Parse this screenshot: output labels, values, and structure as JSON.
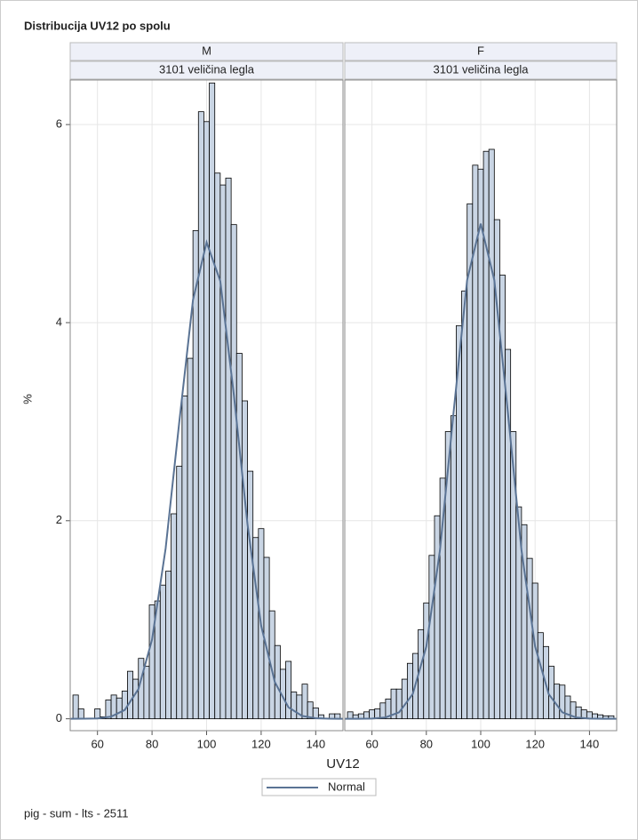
{
  "title": "Distribucija UV12 po spolu",
  "x_label": "UV12",
  "y_label": "%",
  "footnote": "pig - sum - lts - 2511",
  "bar_color": "#c9d5e4",
  "curve": {
    "name": "Normal",
    "color": "#5a7394"
  },
  "chart_data": [
    {
      "type": "histogram",
      "panel": "M",
      "panel_subtitle": "3101 veličina legla",
      "bins": [
        51,
        53,
        55,
        57,
        59,
        61,
        63,
        65,
        67,
        69,
        71,
        73,
        75,
        77,
        79,
        81,
        83,
        85,
        87,
        89,
        91,
        93,
        95,
        97,
        99,
        101,
        103,
        105,
        107,
        109,
        111,
        113,
        115,
        117,
        119,
        121,
        123,
        125,
        127,
        129,
        131,
        133,
        135,
        137,
        139,
        141,
        143,
        145,
        147,
        149
      ],
      "values": [
        0.24,
        0.1,
        0,
        0,
        0.1,
        0.02,
        0.19,
        0.24,
        0.21,
        0.28,
        0.48,
        0.4,
        0.61,
        0.53,
        1.15,
        1.19,
        1.35,
        1.49,
        2.07,
        2.55,
        3.26,
        3.64,
        4.93,
        6.13,
        6.03,
        6.42,
        5.51,
        5.39,
        5.46,
        4.99,
        3.69,
        3.21,
        2.5,
        1.83,
        1.92,
        1.63,
        1.09,
        0.74,
        0.5,
        0.58,
        0.27,
        0.24,
        0.35,
        0.17,
        0.11,
        0.04,
        0,
        0.05,
        0.05
      ],
      "curve_x": [
        50,
        55,
        60,
        65,
        70,
        75,
        80,
        85,
        90,
        95,
        100,
        105,
        110,
        115,
        120,
        125,
        130,
        135,
        140,
        145,
        150
      ],
      "curve_values": [
        0,
        0.001,
        0.004,
        0.022,
        0.089,
        0.3,
        0.8,
        1.72,
        3.0,
        4.23,
        4.81,
        4.42,
        3.27,
        1.96,
        0.94,
        0.37,
        0.116,
        0.029,
        0.006,
        0.001,
        0
      ],
      "xlim": [
        50,
        150
      ],
      "ylim": [
        -0.12,
        6.45
      ],
      "xticks": [
        60,
        80,
        100,
        120,
        140
      ],
      "yticks": [
        0,
        2,
        4,
        6
      ],
      "grid": true
    },
    {
      "type": "histogram",
      "panel": "F",
      "panel_subtitle": "3101 veličina legla",
      "bins": [
        51,
        53,
        55,
        57,
        59,
        61,
        63,
        65,
        67,
        69,
        71,
        73,
        75,
        77,
        79,
        81,
        83,
        85,
        87,
        89,
        91,
        93,
        95,
        97,
        99,
        101,
        103,
        105,
        107,
        109,
        111,
        113,
        115,
        117,
        119,
        121,
        123,
        125,
        127,
        129,
        131,
        133,
        135,
        137,
        139,
        141,
        143,
        145,
        147,
        149
      ],
      "values": [
        0.07,
        0.04,
        0.05,
        0.07,
        0.09,
        0.1,
        0.16,
        0.2,
        0.3,
        0.3,
        0.4,
        0.56,
        0.66,
        0.9,
        1.17,
        1.65,
        2.05,
        2.43,
        2.9,
        3.06,
        3.97,
        4.32,
        5.2,
        5.59,
        5.55,
        5.73,
        5.75,
        5.04,
        4.48,
        3.73,
        2.9,
        2.14,
        1.96,
        1.62,
        1.37,
        0.87,
        0.73,
        0.53,
        0.35,
        0.34,
        0.23,
        0.17,
        0.12,
        0.09,
        0.07,
        0.05,
        0.04,
        0.03,
        0.03
      ],
      "curve_x": [
        50,
        55,
        60,
        65,
        70,
        75,
        80,
        85,
        90,
        95,
        100,
        105,
        110,
        115,
        120,
        125,
        130,
        135,
        140,
        145,
        150
      ],
      "curve_values": [
        0,
        0,
        0.002,
        0.014,
        0.066,
        0.25,
        0.73,
        1.7,
        3.09,
        4.43,
        5.0,
        4.43,
        3.09,
        1.7,
        0.73,
        0.25,
        0.066,
        0.014,
        0.002,
        0,
        0
      ],
      "xlim": [
        50,
        150
      ],
      "ylim": [
        -0.12,
        6.45
      ],
      "xticks": [
        60,
        80,
        100,
        120,
        140
      ],
      "yticks": [
        0,
        2,
        4,
        6
      ],
      "grid": true
    }
  ]
}
